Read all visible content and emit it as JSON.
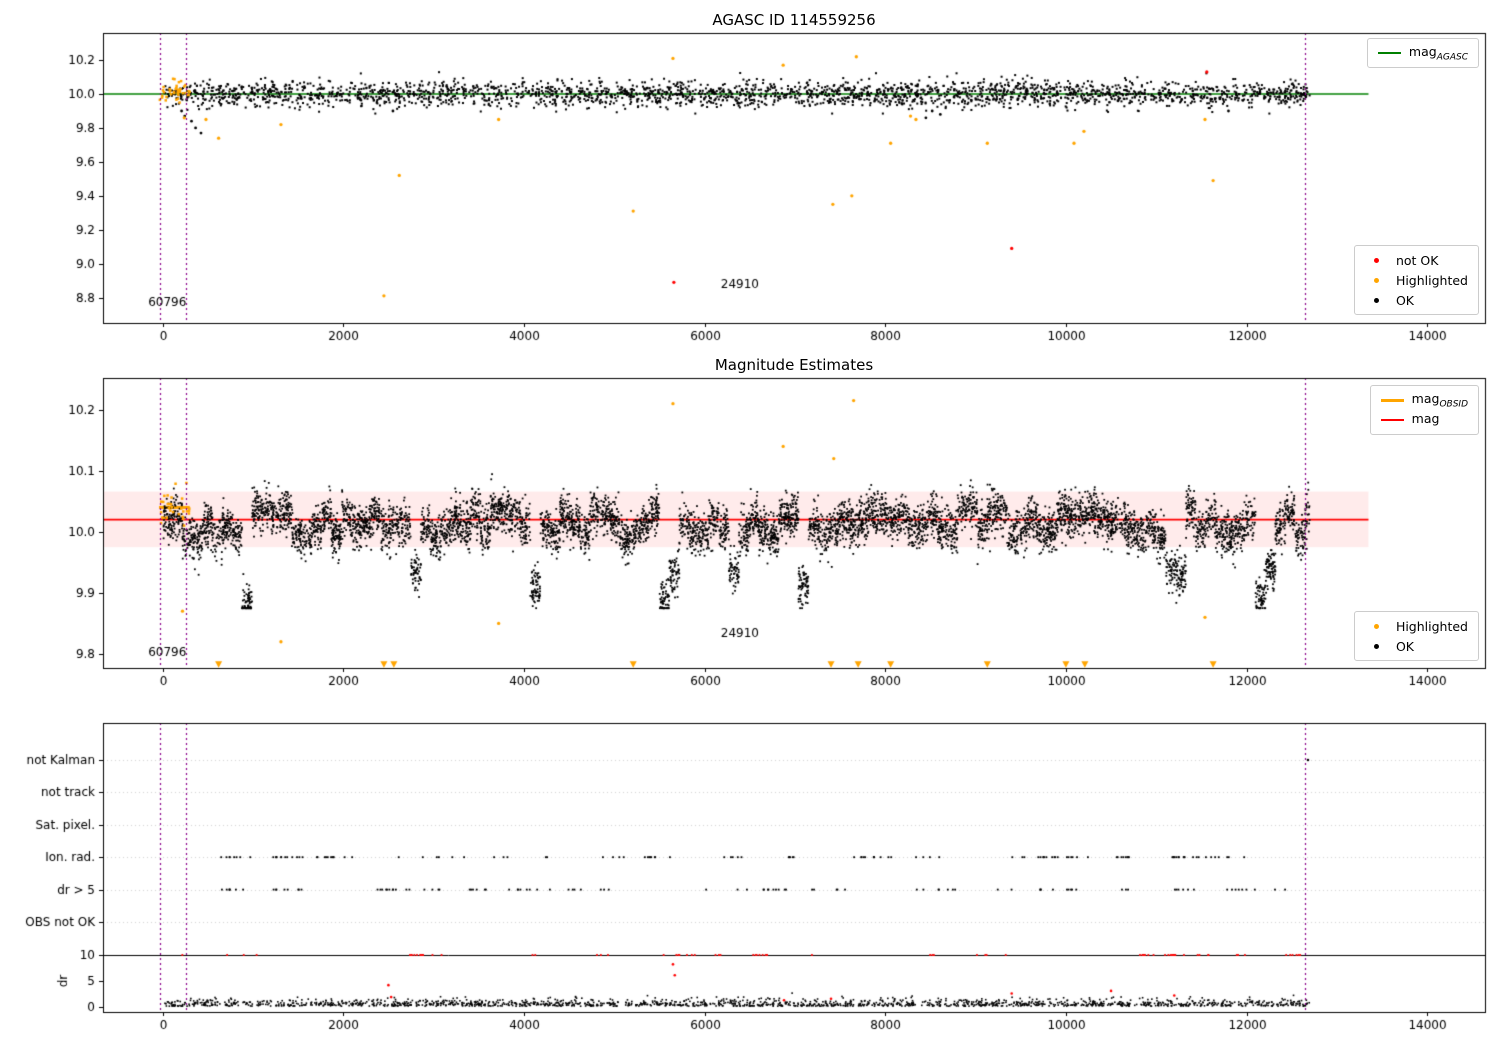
{
  "figure": {
    "background": "#ffffff"
  },
  "chart_data": [
    {
      "type": "scatter",
      "title": "AGASC ID 114559256",
      "xlim": [
        -660,
        14640
      ],
      "ylim": [
        8.65,
        10.36
      ],
      "xticks": [
        0,
        2000,
        4000,
        6000,
        8000,
        10000,
        12000,
        14000
      ],
      "yticks": [
        8.8,
        9.0,
        9.2,
        9.4,
        9.6,
        9.8,
        10.0,
        10.2
      ],
      "hlines": [
        {
          "y": 10.0,
          "color": "#008000",
          "width": 1.5,
          "x0": -660,
          "x1": 13350
        }
      ],
      "vlines": {
        "x": [
          -30,
          255,
          12650
        ],
        "color": "#8B008B",
        "style": "dotted"
      },
      "annotations": [
        {
          "text": "60796",
          "x": -160,
          "y": 8.75
        },
        {
          "text": "24910",
          "x": 6180,
          "y": 8.855
        }
      ],
      "series": [
        {
          "name": "OK",
          "color": "#000000",
          "size": 2,
          "generator": {
            "kind": "band",
            "seed": 101,
            "n": 2600,
            "xMin": 10,
            "xMax": 12700,
            "yMean": 10.0,
            "ySd": 0.038,
            "yClip": [
              9.885,
              10.13
            ]
          }
        },
        {
          "name": "OK-low-outliers",
          "color": "#000000",
          "size": 2,
          "points": [
            [
              210,
              9.9
            ],
            [
              245,
              9.87
            ],
            [
              320,
              9.84
            ],
            [
              365,
              9.8
            ],
            [
              425,
              9.77
            ],
            [
              2550,
              9.9
            ],
            [
              8450,
              9.86
            ],
            [
              8520,
              9.9
            ],
            [
              8610,
              9.88
            ],
            [
              11800,
              9.9
            ]
          ]
        },
        {
          "name": "Highlighted-cluster-60796",
          "color": "#ffa500",
          "size": 2.5,
          "generator": {
            "kind": "band",
            "seed": 202,
            "n": 40,
            "xMin": -40,
            "xMax": 300,
            "yMean": 10.02,
            "ySd": 0.035,
            "yClip": [
              9.95,
              10.09
            ]
          }
        },
        {
          "name": "Highlighted",
          "color": "#ffa500",
          "size": 2.5,
          "points": [
            [
              240,
              9.86
            ],
            [
              480,
              9.85
            ],
            [
              620,
              9.74
            ],
            [
              1310,
              9.82
            ],
            [
              2450,
              8.81
            ],
            [
              2620,
              9.52
            ],
            [
              3720,
              9.85
            ],
            [
              5210,
              9.31
            ],
            [
              5650,
              10.21
            ],
            [
              6870,
              10.17
            ],
            [
              7420,
              9.35
            ],
            [
              7630,
              9.4
            ],
            [
              7680,
              10.22
            ],
            [
              8060,
              9.71
            ],
            [
              8280,
              9.87
            ],
            [
              8340,
              9.85
            ],
            [
              9130,
              9.71
            ],
            [
              10090,
              9.71
            ],
            [
              10200,
              9.78
            ],
            [
              11540,
              9.85
            ],
            [
              11630,
              9.49
            ]
          ]
        },
        {
          "name": "not OK",
          "color": "#ff0000",
          "size": 2.5,
          "points": [
            [
              5660,
              8.89
            ],
            [
              9400,
              9.09
            ],
            [
              11560,
              10.13
            ]
          ]
        }
      ],
      "legend_top": {
        "items": [
          {
            "marker": "line",
            "color": "#008000",
            "label_main": "mag",
            "label_sub": "AGASC"
          }
        ]
      },
      "legend_bottom": {
        "items": [
          {
            "marker": "dot",
            "color": "#ff0000",
            "label": "not OK"
          },
          {
            "marker": "dot",
            "color": "#ffa500",
            "label": "Highlighted"
          },
          {
            "marker": "dot",
            "color": "#000000",
            "label": "OK"
          }
        ]
      }
    },
    {
      "type": "scatter",
      "title": "Magnitude Estimates",
      "xlim": [
        -660,
        14640
      ],
      "ylim": [
        9.777,
        10.252
      ],
      "xticks": [
        0,
        2000,
        4000,
        6000,
        8000,
        10000,
        12000,
        14000
      ],
      "yticks": [
        9.8,
        9.9,
        10.0,
        10.1,
        10.2
      ],
      "band": {
        "x0": -660,
        "x1": 13350,
        "y0": 9.975,
        "y1": 10.066,
        "color": "#ff0000",
        "alpha": 0.08
      },
      "hlines": [
        {
          "y": 10.02,
          "color": "#ff0000",
          "width": 1.6,
          "x0": -660,
          "x1": 13350
        }
      ],
      "obsid_segment": {
        "x0": -40,
        "x1": 300,
        "y": 10.04,
        "color": "#ffa500",
        "width": 3
      },
      "vlines": {
        "x": [
          -30,
          255,
          12650
        ],
        "color": "#8B008B",
        "style": "dotted"
      },
      "annotations": [
        {
          "text": "60796",
          "x": -160,
          "y": 9.797
        },
        {
          "text": "24910",
          "x": 6180,
          "y": 9.827
        }
      ],
      "series": [
        {
          "name": "OK",
          "color": "#000000",
          "size": 1.8,
          "generator": {
            "kind": "striped",
            "seed": 303,
            "n": 7500,
            "xMin": 10,
            "xMax": 12700,
            "base": 10.012,
            "segW": 110,
            "segSd": 0.026,
            "pointSd": 0.017,
            "dipProb": 0.08,
            "dipDrop": 0.08,
            "clip": [
              9.875,
              10.125
            ]
          }
        },
        {
          "name": "Highlighted-cluster-60796",
          "color": "#ffa500",
          "size": 2.5,
          "generator": {
            "kind": "band",
            "seed": 404,
            "n": 30,
            "xMin": -40,
            "xMax": 300,
            "yMean": 10.04,
            "ySd": 0.02,
            "yClip": [
              9.99,
              10.08
            ]
          }
        },
        {
          "name": "Highlighted",
          "color": "#ffa500",
          "size": 2.5,
          "points": [
            [
              220,
              9.87
            ],
            [
              1310,
              9.82
            ],
            [
              3720,
              9.85
            ],
            [
              5650,
              10.21
            ],
            [
              6870,
              10.14
            ],
            [
              7430,
              10.12
            ],
            [
              7650,
              10.215
            ],
            [
              11540,
              9.86
            ]
          ]
        },
        {
          "name": "Highlighted-offscale-low",
          "color": "#ffa500",
          "marker": "tri-down",
          "size": 4,
          "points_x": [
            620,
            2450,
            2560,
            5210,
            7400,
            7700,
            8060,
            9130,
            10000,
            10210,
            11630
          ],
          "y": 9.783
        }
      ],
      "legend_top": {
        "items": [
          {
            "marker": "line",
            "color": "#ffa500",
            "label_main": "mag",
            "label_sub": "OBSID"
          },
          {
            "marker": "line",
            "color": "#ff0000",
            "label_main": "mag",
            "label_sub": ""
          }
        ]
      },
      "legend_bottom": {
        "items": [
          {
            "marker": "dot",
            "color": "#ffa500",
            "label": "Highlighted"
          },
          {
            "marker": "dot",
            "color": "#000000",
            "label": "OK"
          }
        ]
      }
    },
    {
      "type": "flags-and-dr",
      "title": "",
      "xlim": [
        -660,
        14640
      ],
      "xticks": [
        0,
        2000,
        4000,
        6000,
        8000,
        10000,
        12000,
        14000
      ],
      "flag_rows": [
        "not Kalman",
        "not track",
        "Sat. pixel.",
        "Ion. rad.",
        "dr > 5",
        "OBS not OK"
      ],
      "dr_axis": {
        "label": "dr",
        "ticks": [
          0,
          5,
          10
        ],
        "hline_y": 10
      },
      "vlines": {
        "x": [
          -30,
          255,
          12650
        ],
        "color": "#8B008B",
        "style": "dotted"
      },
      "series": [
        {
          "name": "ion-rad-flags",
          "row": 3,
          "color": "#000000",
          "size": 1.8,
          "generator": {
            "kind": "clusters",
            "seed": 505,
            "nClusters": 44,
            "cMin": 230,
            "cMax": 12450,
            "spread": 110,
            "perMin": 1,
            "perMax": 5
          }
        },
        {
          "name": "dr-gt-5-flags",
          "row": 4,
          "color": "#000000",
          "size": 1.8,
          "generator": {
            "kind": "clusters",
            "seed": 505,
            "nClusters": 42,
            "cMin": 230,
            "cMax": 12450,
            "spread": 100,
            "perMin": 1,
            "perMax": 4
          }
        },
        {
          "name": "not-kalman-flags",
          "row": 0,
          "color": "#000000",
          "size": 1.8,
          "points_x": [
            12680
          ]
        },
        {
          "name": "dr-red-clipped-at-10",
          "dr": 10,
          "color": "#ff0000",
          "size": 1.8,
          "generator": {
            "kind": "clusters",
            "seed": 707,
            "nClusters": 32,
            "cMin": 240,
            "cMax": 12700,
            "spread": 80,
            "perMin": 1,
            "perMax": 4
          }
        },
        {
          "name": "dr-red-below-10",
          "color": "#ff0000",
          "size": 1.8,
          "points_dr": [
            [
              2500,
              4.2
            ],
            [
              2530,
              1.9
            ],
            [
              5650,
              8.2
            ],
            [
              5670,
              6.1
            ],
            [
              7400,
              1.6
            ],
            [
              9400,
              2.6
            ],
            [
              10500,
              3.1
            ],
            [
              6880,
              1.3
            ],
            [
              11200,
              2.2
            ]
          ]
        },
        {
          "name": "dr-black-noise",
          "color": "#000000",
          "size": 1.6,
          "generator": {
            "kind": "halfnormal",
            "seed": 808,
            "n": 1700,
            "xMin": 10,
            "xMax": 12700,
            "scale": 0.65,
            "offset": 0.15,
            "clip": 3.8
          }
        }
      ]
    }
  ]
}
